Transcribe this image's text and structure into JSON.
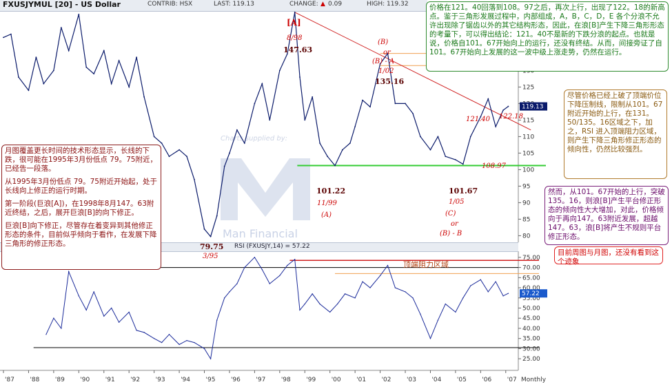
{
  "header": {
    "title": "FXUSJYMUL [20] - US Dollar",
    "contrib": "CONTRIB: HSX",
    "last": "LAST: 119.13",
    "change_label": "CHANGE:",
    "change_value": "0.09",
    "high": "HIGH: 119.32"
  },
  "watermark": {
    "text": "Charts supplied by:",
    "brand": "Man Financial"
  },
  "chart_data": [
    {
      "type": "line",
      "name": "price",
      "title": "FXUSJYMUL [20] - US Dollar",
      "x_label": "Monthly",
      "x_ticks": [
        "'87",
        "'88",
        "'89",
        "'90",
        "'91",
        "'92",
        "'93",
        "'94",
        "'95",
        "'96",
        "'97",
        "'98",
        "'99",
        "'00",
        "'01",
        "'02",
        "'03",
        "'04",
        "'05",
        "'06",
        "'07",
        "Monthly"
      ],
      "y_ticks": [
        80,
        85,
        90,
        95,
        100,
        105,
        110,
        115,
        120,
        125,
        130,
        135,
        140
      ],
      "ylim": [
        78,
        148
      ],
      "last_value_label": "119.13",
      "x": [
        1987.0,
        1987.3,
        1987.6,
        1988.0,
        1988.3,
        1988.6,
        1989.0,
        1989.3,
        1989.6,
        1990.0,
        1990.3,
        1990.6,
        1991.0,
        1991.3,
        1991.6,
        1992.0,
        1992.3,
        1992.6,
        1993.0,
        1993.3,
        1993.6,
        1994.0,
        1994.3,
        1994.6,
        1995.0,
        1995.25,
        1995.5,
        1995.8,
        1996.0,
        1996.3,
        1996.6,
        1997.0,
        1997.3,
        1997.6,
        1998.0,
        1998.3,
        1998.6,
        1998.8,
        1999.0,
        1999.3,
        1999.6,
        1999.9,
        2000.2,
        2000.5,
        2000.8,
        2001.0,
        2001.3,
        2001.6,
        2002.0,
        2002.3,
        2002.6,
        2003.0,
        2003.3,
        2003.6,
        2004.0,
        2004.3,
        2004.6,
        2005.0,
        2005.3,
        2005.6,
        2006.0,
        2006.3,
        2006.6,
        2006.9,
        2007.1
      ],
      "y": [
        140,
        141,
        128,
        124,
        134,
        126,
        130,
        143,
        136,
        147,
        131,
        129,
        136,
        126,
        133,
        125,
        134,
        122,
        110,
        108,
        104,
        106,
        104,
        97,
        82,
        79.75,
        86,
        101,
        105,
        112,
        108,
        120,
        126,
        115,
        130,
        135,
        147.63,
        128,
        115,
        122,
        108,
        104,
        101.22,
        106,
        108,
        113,
        121,
        119,
        132,
        135.16,
        120,
        120,
        117,
        110,
        106,
        110,
        104,
        103,
        101.67,
        110,
        116,
        121.4,
        113,
        118,
        119.13
      ],
      "series": [
        {
          "name": "support",
          "value": 101.22
        },
        {
          "name": "resistance-1",
          "value": 135.16
        },
        {
          "name": "resistance-2",
          "value": 131.5
        },
        {
          "name": "trendline",
          "from": [
            1998.6,
            147.63
          ],
          "to": [
            2007.3,
            115
          ]
        }
      ]
    },
    {
      "type": "line",
      "name": "rsi",
      "title": "RSI (FXUSJY,14) = 57.22",
      "y_ticks": [
        25,
        30,
        35,
        40,
        45,
        50,
        55,
        60,
        65,
        70,
        75
      ],
      "ylim": [
        22,
        78
      ],
      "last_value_label": "57.22",
      "x": [
        1988.7,
        1989.0,
        1989.3,
        1989.6,
        1990.0,
        1990.3,
        1990.6,
        1991.0,
        1991.3,
        1991.6,
        1992.0,
        1992.3,
        1992.6,
        1993.0,
        1993.3,
        1993.6,
        1994.0,
        1994.3,
        1994.6,
        1995.0,
        1995.25,
        1995.5,
        1995.8,
        1996.0,
        1996.3,
        1996.6,
        1997.0,
        1997.3,
        1997.6,
        1998.0,
        1998.3,
        1998.6,
        1998.8,
        1999.0,
        1999.3,
        1999.6,
        2000.0,
        2000.3,
        2000.6,
        2001.0,
        2001.3,
        2001.6,
        2002.0,
        2002.3,
        2002.6,
        2003.0,
        2003.3,
        2003.6,
        2004.0,
        2004.3,
        2004.6,
        2005.0,
        2005.3,
        2005.6,
        2006.0,
        2006.3,
        2006.6,
        2006.9,
        2007.1
      ],
      "y": [
        37,
        45,
        40,
        68,
        56,
        49,
        58,
        46,
        50,
        43,
        48,
        39,
        38,
        35,
        33,
        37,
        32,
        34,
        33,
        30,
        25,
        44,
        55,
        58,
        62,
        70,
        75,
        69,
        62,
        66,
        71,
        74,
        49,
        52,
        57,
        52,
        48,
        52,
        57,
        55,
        63,
        60,
        66,
        71,
        60,
        58,
        55,
        47,
        35,
        44,
        52,
        48,
        55,
        61,
        64,
        58,
        63,
        56,
        57.22
      ],
      "series": [
        {
          "name": "upper-level",
          "value": 73.5
        },
        {
          "name": "lower-level",
          "value": 30.5
        },
        {
          "name": "resist-zone",
          "value": 67
        }
      ]
    }
  ],
  "annotations": {
    "wave_a_label": "[A]",
    "peak_date": "8/98",
    "peak_value": "147.63",
    "b_a_label1": "(B)",
    "b_a_or": "or",
    "b_a_label2": "(B) - A",
    "b_a_date": "1/02",
    "b_a_value": "135.16",
    "v121": "121.40",
    "v122": "122.18",
    "v108": "108.97",
    "low1_value": "101.22",
    "low1_date": "11/99",
    "low1_label": "(A)",
    "low2_value": "101.67",
    "low2_date": "1/05",
    "low2_label1": "(C)",
    "low2_or": "or",
    "low2_label2": "(B) - B",
    "low95_value": "79.75",
    "low95_date": "3/95",
    "resist_zone": "顶端阻力区域"
  },
  "notes": {
    "top_right": "价格在121。40回落到108。97之后，再次上行，出现了122。18的新高点。鉴于三角形发展过程中，内部组成，A，B，C，D，E 各个分浪不允许出现除了锯齿以外的其它结构形态，因此，在浪[B]产生下降三角形形态的考量下，可以得出结论：121。40不是新的下跌分浪的起点。也就是说，价格自101。67开始向上的运行，还没有终结。从而，间接旁证了自101。67开始向上发展的这一波中级上涨走势，仍然在运行。",
    "right_1": "尽管价格已经上破了顶端价位下降压制线，限制从101。67附近开始的上行，在131。50/135。16区域之下，加之，RSI 进入顶端阻力区域，则产生下降三角形修正形态的倾向性，仍然比较强烈。",
    "right_2": "然而，从101。67开始的上行，突破135。16，则浪[B]产生平台修正形态的倾向性大大增加，对此，价格倾向于再向147。63附近发展，超越147。63，浪[B]将产生不规则平台修正形态。",
    "right_3": "目前周图与月图，还没有看到这个迹象",
    "left_1": "月图覆盖更长时间的技术形态显示，长线的下跌，很可能在1995年3月份低点 79。75附近，已经告一段落。",
    "left_2": "从1995年3月份低点 79。75附近开始起，处于长线向上修正的运行时期。",
    "left_3": "第一阶段(巨浪[A])，在1998年8月147。63附近终结，之后，展开巨浪[B]的向下修正。",
    "left_4": "巨浪[B]向下修正，尽管存在着变异到其他修正形态的条件，目前似乎倾向于看作，在发展下降三角形的修正形态。"
  }
}
